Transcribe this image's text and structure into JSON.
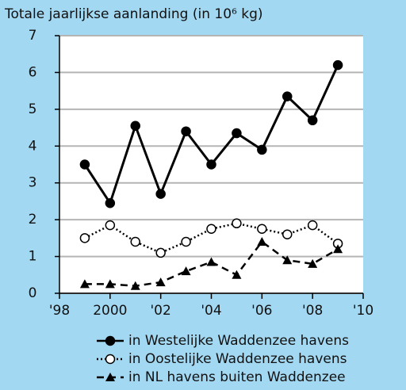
{
  "chart_data": {
    "type": "line",
    "title": "Totale jaarlijkse aanlanding (in 10⁶ kg)",
    "x": [
      1999,
      2000,
      2001,
      2002,
      2003,
      2004,
      2005,
      2006,
      2007,
      2008,
      2009
    ],
    "xlim": [
      1998,
      2010
    ],
    "xticks": [
      {
        "value": 1998,
        "label": "'98"
      },
      2000,
      {
        "value": 2002,
        "label": "'02"
      },
      {
        "value": 2004,
        "label": "'04"
      },
      {
        "value": 2006,
        "label": "'06"
      },
      {
        "value": 2008,
        "label": "'08"
      },
      {
        "value": 2010,
        "label": "'10"
      }
    ],
    "ylim": [
      0,
      7
    ],
    "yticks": [
      0,
      1,
      2,
      3,
      4,
      5,
      6,
      7
    ],
    "grid": true,
    "series": [
      {
        "name": "in Westelijke Waddenzee havens",
        "color": "#000000",
        "style": "solid",
        "marker": "circle",
        "values": [
          3.5,
          2.45,
          4.55,
          2.7,
          4.4,
          3.5,
          4.35,
          3.9,
          5.35,
          4.7,
          6.2
        ]
      },
      {
        "name": "in Oostelijke Waddenzee havens",
        "color": "#000000",
        "style": "dotted",
        "marker": "open-circle",
        "values": [
          1.5,
          1.85,
          1.4,
          1.1,
          1.4,
          1.75,
          1.9,
          1.75,
          1.6,
          1.85,
          1.35
        ]
      },
      {
        "name": "in NL havens buiten Waddenzee",
        "color": "#000000",
        "style": "dashed",
        "marker": "triangle",
        "values": [
          0.25,
          0.25,
          0.2,
          0.3,
          0.6,
          0.85,
          0.5,
          1.4,
          0.9,
          0.8,
          1.2
        ]
      }
    ]
  }
}
